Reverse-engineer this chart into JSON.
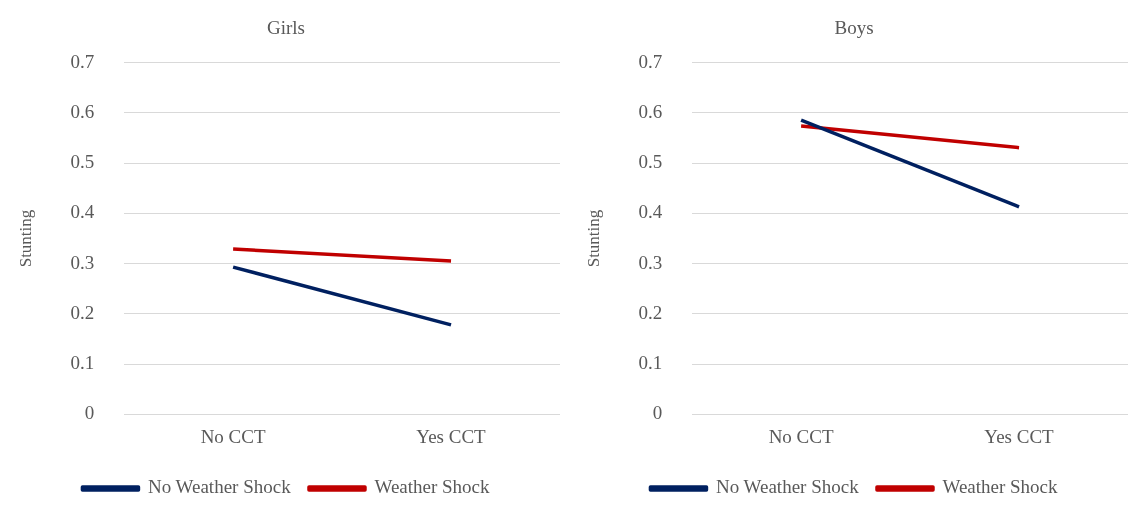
{
  "chart_data": [
    {
      "type": "line",
      "title": "Girls",
      "ylabel": "Stunting",
      "categories": [
        "No CCT",
        "Yes CCT"
      ],
      "series": [
        {
          "name": "No Weather Shock",
          "color": "#002060",
          "values": [
            0.293,
            0.178
          ]
        },
        {
          "name": "Weather Shock",
          "color": "#c00000",
          "values": [
            0.329,
            0.305
          ]
        }
      ],
      "ylim": [
        0,
        0.7
      ],
      "yticks": [
        0,
        0.1,
        0.2,
        0.3,
        0.4,
        0.5,
        0.6,
        0.7
      ],
      "grid": "y",
      "legend": "bottom",
      "marker": "none"
    },
    {
      "type": "line",
      "title": "Boys",
      "ylabel": "Stunting",
      "categories": [
        "No CCT",
        "Yes CCT"
      ],
      "series": [
        {
          "name": "No Weather Shock",
          "color": "#002060",
          "values": [
            0.586,
            0.413
          ]
        },
        {
          "name": "Weather Shock",
          "color": "#c00000",
          "values": [
            0.574,
            0.531
          ]
        }
      ],
      "ylim": [
        0,
        0.7
      ],
      "yticks": [
        0,
        0.1,
        0.2,
        0.3,
        0.4,
        0.5,
        0.6,
        0.7
      ],
      "grid": "y",
      "legend": "bottom",
      "marker": "none"
    }
  ]
}
